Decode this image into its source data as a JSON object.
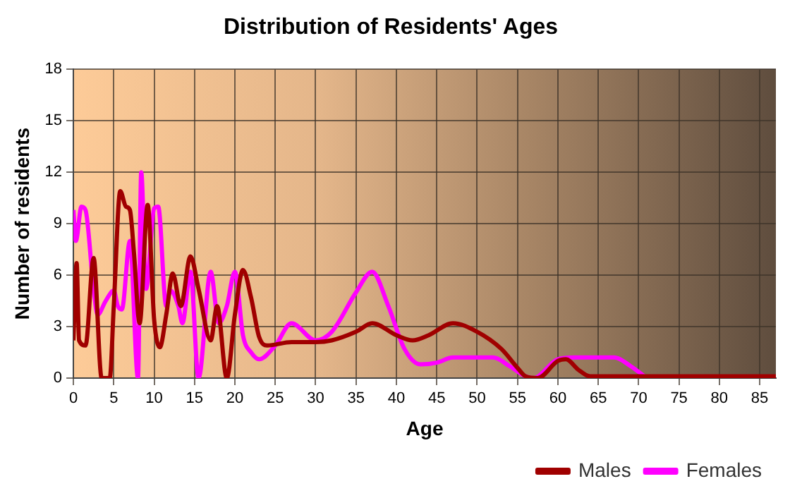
{
  "chart_data": {
    "type": "line",
    "title": "Distribution of Residents' Ages",
    "xlabel": "Age",
    "ylabel": "Number of residents",
    "xlim": [
      0,
      87
    ],
    "xticks": [
      0,
      5,
      10,
      15,
      20,
      25,
      30,
      35,
      40,
      45,
      50,
      55,
      60,
      65,
      70,
      75,
      80,
      85
    ],
    "ylim": [
      0,
      18
    ],
    "yticks": [
      0,
      3,
      6,
      9,
      12,
      15,
      18
    ],
    "grid": true,
    "legend": "bottom",
    "marker": "none",
    "line_style": "solid",
    "series": [
      {
        "name": "Males",
        "color": "#a00000",
        "x": [
          0,
          0.4,
          0.7,
          1.5,
          2.5,
          3.5,
          4.5,
          5,
          5.8,
          6.5,
          7,
          7.5,
          8.2,
          9.2,
          10,
          10.7,
          11.5,
          12.3,
          13.3,
          14.5,
          15.5,
          17,
          17.8,
          19,
          20,
          21,
          22,
          23,
          24,
          27,
          30,
          32,
          35,
          37,
          40,
          42,
          44,
          47,
          50,
          53,
          55,
          56,
          57.5,
          60,
          61,
          62.5,
          64,
          70,
          75,
          80,
          87
        ],
        "values": [
          2.2,
          6.7,
          2.2,
          1.9,
          7,
          0,
          0,
          4.2,
          10.9,
          10,
          9.8,
          7.3,
          3.2,
          10.1,
          3.4,
          1.8,
          3.7,
          6.1,
          4.2,
          7.1,
          5.2,
          2.2,
          4.2,
          0,
          3.7,
          6.3,
          4.7,
          2.4,
          1.9,
          2.1,
          2.1,
          2.2,
          2.7,
          3.2,
          2.5,
          2.2,
          2.5,
          3.2,
          2.7,
          1.7,
          0.6,
          0.1,
          0,
          1,
          1.1,
          0.5,
          0.1,
          0.1,
          0.1,
          0.1,
          0.1
        ]
      },
      {
        "name": "Females",
        "color": "#ff00ff",
        "x": [
          0,
          0.3,
          1,
          1.5,
          2.5,
          3,
          4,
          5,
          5.5,
          6,
          7,
          8,
          8.4,
          9,
          10,
          10.5,
          11.5,
          12,
          13,
          13.5,
          14.5,
          15.5,
          17,
          18,
          19,
          20,
          21,
          22,
          23,
          25,
          27,
          30,
          32,
          35,
          37,
          39,
          41,
          43,
          45,
          47,
          50,
          52,
          54,
          56,
          57,
          60,
          62,
          65,
          67,
          69,
          71
        ],
        "values": [
          9.8,
          8,
          10,
          9.8,
          5.2,
          3.7,
          4.5,
          5.1,
          4.2,
          4,
          8,
          0,
          12,
          5.2,
          9.9,
          10,
          4.2,
          5.1,
          4.2,
          3.2,
          6.2,
          0,
          6.2,
          3.2,
          4.2,
          6.2,
          2.5,
          1.5,
          1.1,
          1.9,
          3.2,
          2.2,
          2.7,
          5,
          6.2,
          4.2,
          1.7,
          0.8,
          0.9,
          1.2,
          1.2,
          1.2,
          0.7,
          0.1,
          0,
          1.1,
          1.2,
          1.2,
          1.2,
          0.7,
          0
        ]
      }
    ]
  }
}
